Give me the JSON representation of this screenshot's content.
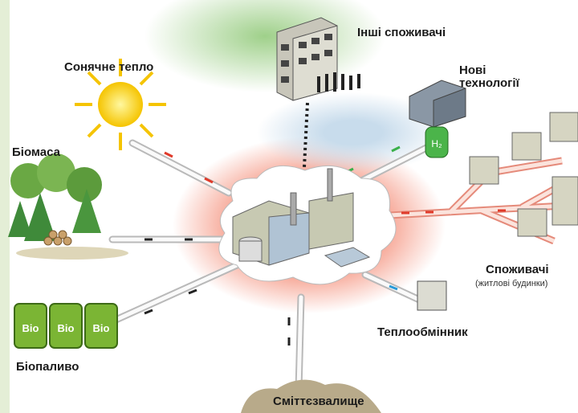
{
  "labels": {
    "other_consumers": "Інші споживачі",
    "solar_heat": "Сонячне тепло",
    "new_tech_1": "Нові",
    "new_tech_2": "технології",
    "biomass": "Біомаса",
    "consumers": "Споживачі",
    "consumers_note": "(житлові будинки)",
    "heat_exchanger": "Теплообмінник",
    "biofuel": "Біопаливо",
    "landfill": "Сміттєзвалище"
  },
  "barrels": [
    "Bio",
    "Bio",
    "Bio"
  ],
  "tank": "H₂"
}
